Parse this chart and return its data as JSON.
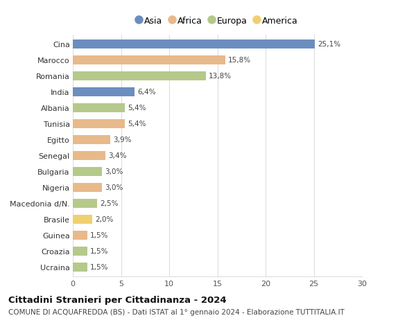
{
  "countries": [
    "Cina",
    "Marocco",
    "Romania",
    "India",
    "Albania",
    "Tunisia",
    "Egitto",
    "Senegal",
    "Bulgaria",
    "Nigeria",
    "Macedonia d/N.",
    "Brasile",
    "Guinea",
    "Croazia",
    "Ucraina"
  ],
  "values": [
    25.1,
    15.8,
    13.8,
    6.4,
    5.4,
    5.4,
    3.9,
    3.4,
    3.0,
    3.0,
    2.5,
    2.0,
    1.5,
    1.5,
    1.5
  ],
  "labels": [
    "25,1%",
    "15,8%",
    "13,8%",
    "6,4%",
    "5,4%",
    "5,4%",
    "3,9%",
    "3,4%",
    "3,0%",
    "3,0%",
    "2,5%",
    "2,0%",
    "1,5%",
    "1,5%",
    "1,5%"
  ],
  "continents": [
    "Asia",
    "Africa",
    "Europa",
    "Asia",
    "Europa",
    "Africa",
    "Africa",
    "Africa",
    "Europa",
    "Africa",
    "Europa",
    "America",
    "Africa",
    "Europa",
    "Europa"
  ],
  "continent_colors": {
    "Asia": "#6b8ebf",
    "Africa": "#e8b98a",
    "Europa": "#b5c98a",
    "America": "#f0d070"
  },
  "legend_order": [
    "Asia",
    "Africa",
    "Europa",
    "America"
  ],
  "title": "Cittadini Stranieri per Cittadinanza - 2024",
  "subtitle": "COMUNE DI ACQUAFREDDA (BS) - Dati ISTAT al 1° gennaio 2024 - Elaborazione TUTTITALIA.IT",
  "xlim": [
    0,
    30
  ],
  "xticks": [
    0,
    5,
    10,
    15,
    20,
    25,
    30
  ],
  "background_color": "#ffffff",
  "grid_color": "#dddddd",
  "bar_height": 0.6,
  "title_fontsize": 9.5,
  "subtitle_fontsize": 7.5,
  "tick_fontsize": 8,
  "label_fontsize": 7.5,
  "legend_fontsize": 9
}
